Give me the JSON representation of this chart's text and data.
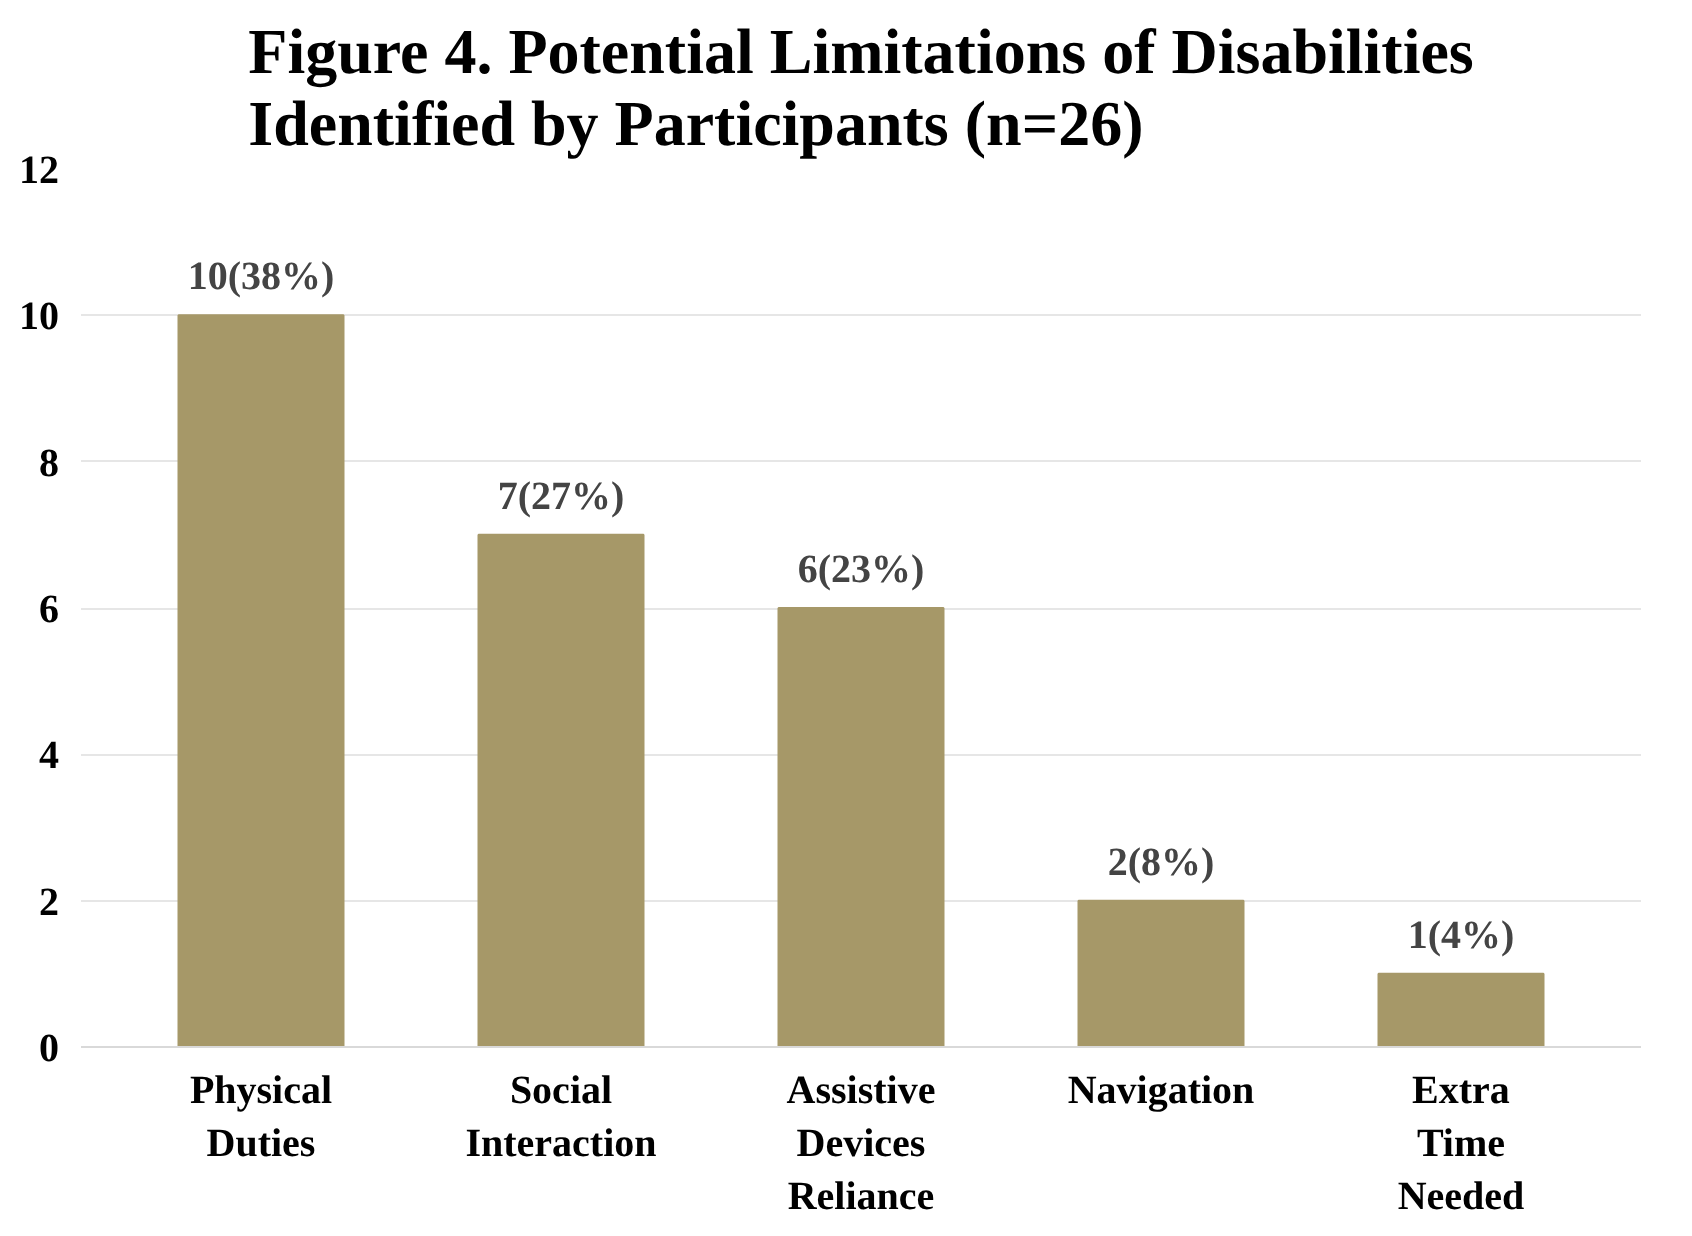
{
  "chart_data": {
    "type": "bar",
    "title": "Figure 4. Potential Limitations of Disabilities Identified by Participants (n=26)",
    "categories": [
      "Physical Duties",
      "Social Interaction",
      "Assistive Devices Reliance",
      "Navigation",
      "Extra Time Needed"
    ],
    "values": [
      10,
      7,
      6,
      2,
      1
    ],
    "value_labels": [
      "10(38%)",
      "7(27%)",
      "6(23%)",
      "2(8%)",
      "1(4%)"
    ],
    "color": "#a69868",
    "ylim": [
      0,
      12
    ],
    "yticks": [
      0,
      2,
      4,
      6,
      8,
      10,
      12
    ],
    "grid": "y"
  }
}
